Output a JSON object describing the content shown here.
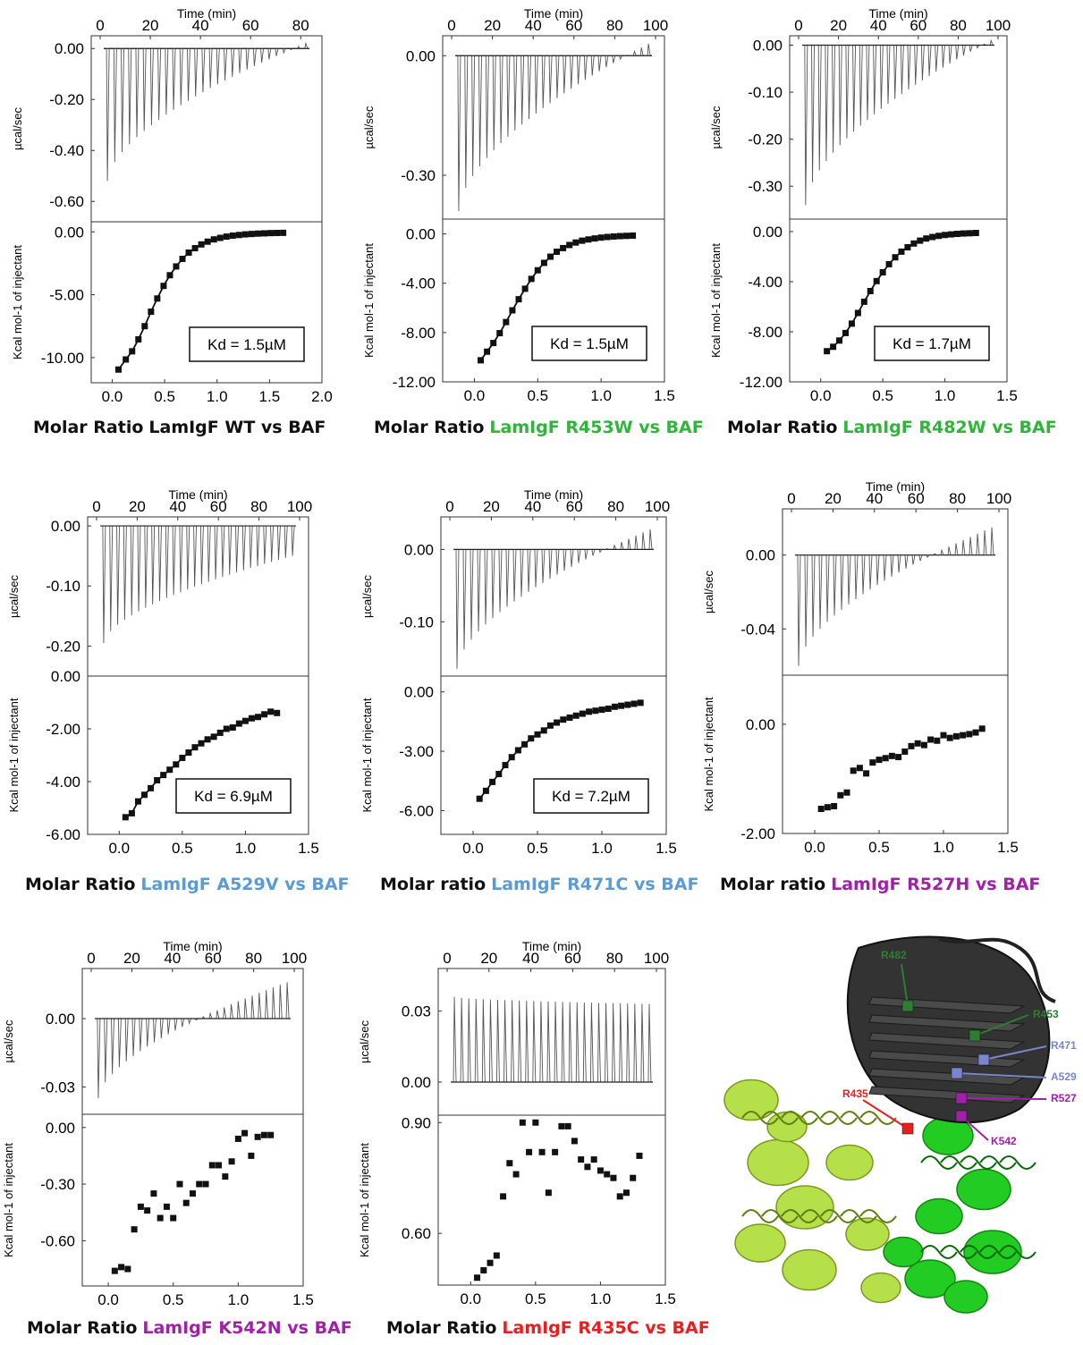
{
  "panels": [
    {
      "id": "wt",
      "time_label": "Time (min)",
      "time_ticks": [
        "0",
        "20",
        "40",
        "60",
        "80"
      ],
      "time_max": 90,
      "thermo_ylabel": "µcal/sec",
      "thermo_ticks": [
        "0.00",
        "-0.20",
        "-0.40",
        "-0.60"
      ],
      "thermo_ylim": [
        -0.68,
        0.05
      ],
      "binding_ylabel": "Kcal mol-1 of injectant",
      "binding_ticks": [
        "0.00",
        "-5.00",
        "-10.00"
      ],
      "binding_ylim": [
        -12.0,
        0.8
      ],
      "xticks": [
        "0.0",
        "0.5",
        "1.0",
        "1.5",
        "2.0"
      ],
      "xlim": [
        -0.2,
        2.0
      ],
      "caption_prefix": "Molar Ratio",
      "caption_mutant": "LamIgF WT vs BAF",
      "mutant_color": "#111111",
      "kd": "Kd = 1.5µM",
      "chart_data": {
        "type": "scatter",
        "thermogram": {
          "n_injections": 28,
          "first_peak": -0.52,
          "final_peak": 0.02,
          "baseline": 0.0,
          "duration_min": 88
        },
        "binding_isotherm": {
          "x": [
            0.06,
            0.13,
            0.19,
            0.25,
            0.31,
            0.37,
            0.43,
            0.49,
            0.55,
            0.61,
            0.67,
            0.73,
            0.79,
            0.85,
            0.91,
            0.97,
            1.03,
            1.09,
            1.15,
            1.21,
            1.27,
            1.33,
            1.39,
            1.45,
            1.51,
            1.57,
            1.63
          ],
          "y": [
            -10.95,
            -10.15,
            -9.5,
            -8.55,
            -7.5,
            -6.35,
            -5.3,
            -4.3,
            -3.45,
            -2.75,
            -2.15,
            -1.65,
            -1.3,
            -1.0,
            -0.78,
            -0.6,
            -0.48,
            -0.38,
            -0.3,
            -0.25,
            -0.2,
            -0.17,
            -0.14,
            -0.12,
            -0.1,
            -0.09,
            -0.08
          ],
          "fit": true
        }
      }
    },
    {
      "id": "r453w",
      "time_label": "Time (min)",
      "time_ticks": [
        "0",
        "20",
        "40",
        "60",
        "80",
        "100"
      ],
      "time_max": 100,
      "thermo_ylabel": "µcal/sec",
      "thermo_ticks": [
        "0.00",
        "-0.30"
      ],
      "thermo_ylim": [
        -0.41,
        0.05
      ],
      "binding_ylabel": "Kcal mol-1 of injectant",
      "binding_ticks": [
        "0.00",
        "-4.00",
        "-8.00",
        "-12.00"
      ],
      "binding_ylim": [
        -12.0,
        1.2
      ],
      "xticks": [
        "0.0",
        "0.5",
        "1.0",
        "1.5"
      ],
      "xlim": [
        -0.25,
        1.5
      ],
      "caption_prefix": "Molar Ratio",
      "caption_mutant": "LamIgF R453W vs BAF",
      "mutant_color": "#2fb53a",
      "kd": "Kd = 1.5µM",
      "chart_data": {
        "type": "scatter",
        "thermogram": {
          "n_injections": 28,
          "first_peak": -0.39,
          "final_peak": 0.03,
          "baseline": 0.0,
          "duration_min": 96
        },
        "binding_isotherm": {
          "x": [
            0.05,
            0.1,
            0.15,
            0.2,
            0.25,
            0.3,
            0.35,
            0.4,
            0.45,
            0.5,
            0.55,
            0.6,
            0.65,
            0.7,
            0.75,
            0.8,
            0.85,
            0.9,
            0.95,
            1.0,
            1.05,
            1.1,
            1.15,
            1.2,
            1.25
          ],
          "y": [
            -10.25,
            -9.55,
            -8.85,
            -8.05,
            -7.15,
            -6.2,
            -5.3,
            -4.45,
            -3.65,
            -2.95,
            -2.35,
            -1.85,
            -1.45,
            -1.15,
            -0.9,
            -0.7,
            -0.55,
            -0.45,
            -0.37,
            -0.3,
            -0.25,
            -0.21,
            -0.18,
            -0.16,
            -0.14
          ],
          "fit": true
        }
      }
    },
    {
      "id": "r482w",
      "time_label": "Time (min)",
      "time_ticks": [
        "0",
        "20",
        "40",
        "60",
        "80",
        "100"
      ],
      "time_max": 100,
      "thermo_ylabel": "µcal/sec",
      "thermo_ticks": [
        "0.00",
        "-0.10",
        "-0.20",
        "-0.30"
      ],
      "thermo_ylim": [
        -0.37,
        0.02
      ],
      "binding_ylabel": "Kcal mol-1 of injectant",
      "binding_ticks": [
        "0.00",
        "-4.00",
        "-8.00",
        "-12.00"
      ],
      "binding_ylim": [
        -12.0,
        1.0
      ],
      "xticks": [
        "0.0",
        "0.5",
        "1.0",
        "1.5"
      ],
      "xlim": [
        -0.25,
        1.5
      ],
      "caption_prefix": "Molar Ratio",
      "caption_mutant": "LamIgF R482W vs BAF",
      "mutant_color": "#2fb53a",
      "kd": "Kd = 1.7µM",
      "chart_data": {
        "type": "scatter",
        "thermogram": {
          "n_injections": 28,
          "first_peak": -0.34,
          "final_peak": 0.01,
          "baseline": 0.0,
          "duration_min": 96
        },
        "binding_isotherm": {
          "x": [
            0.05,
            0.1,
            0.15,
            0.2,
            0.25,
            0.3,
            0.35,
            0.4,
            0.45,
            0.5,
            0.55,
            0.6,
            0.65,
            0.7,
            0.75,
            0.8,
            0.85,
            0.9,
            0.95,
            1.0,
            1.05,
            1.1,
            1.15,
            1.2,
            1.25
          ],
          "y": [
            -9.55,
            -9.2,
            -8.7,
            -8.1,
            -7.35,
            -6.5,
            -5.6,
            -4.75,
            -3.95,
            -3.25,
            -2.6,
            -2.05,
            -1.6,
            -1.25,
            -0.95,
            -0.72,
            -0.55,
            -0.43,
            -0.34,
            -0.27,
            -0.22,
            -0.18,
            -0.15,
            -0.13,
            -0.11
          ],
          "fit": true
        }
      }
    },
    {
      "id": "a529v",
      "time_label": "Time (min)",
      "time_ticks": [
        "0",
        "20",
        "40",
        "60",
        "80",
        "100"
      ],
      "time_max": 100,
      "thermo_ylabel": "µcal/sec",
      "thermo_ticks": [
        "0.00",
        "-0.10",
        "-0.20"
      ],
      "thermo_ylim": [
        -0.25,
        0.015
      ],
      "binding_ylabel": "Kcal mol-1 of injectant",
      "binding_ticks": [
        "0.00",
        "-2.00",
        "-4.00",
        "-6.00"
      ],
      "binding_ylim": [
        -6.0,
        0.0
      ],
      "xticks": [
        "0.0",
        "0.5",
        "1.0",
        "1.5"
      ],
      "xlim": [
        -0.25,
        1.5
      ],
      "caption_prefix": "Molar Ratio",
      "caption_mutant": "LamIgF A529V vs BAF",
      "mutant_color": "#5b9bd5",
      "kd": "Kd = 6.9µM",
      "chart_data": {
        "type": "scatter",
        "thermogram": {
          "n_injections": 28,
          "first_peak": -0.195,
          "final_peak": -0.05,
          "baseline": 0.0,
          "duration_min": 96
        },
        "binding_isotherm": {
          "x": [
            0.05,
            0.1,
            0.15,
            0.2,
            0.25,
            0.3,
            0.35,
            0.4,
            0.45,
            0.5,
            0.55,
            0.6,
            0.65,
            0.7,
            0.75,
            0.8,
            0.85,
            0.9,
            0.95,
            1.0,
            1.05,
            1.1,
            1.15,
            1.2,
            1.25
          ],
          "y": [
            -5.35,
            -5.2,
            -4.75,
            -4.5,
            -4.25,
            -3.95,
            -3.75,
            -3.55,
            -3.35,
            -3.1,
            -2.9,
            -2.7,
            -2.55,
            -2.4,
            -2.3,
            -2.15,
            -2.0,
            -1.95,
            -1.8,
            -1.7,
            -1.6,
            -1.55,
            -1.45,
            -1.35,
            -1.4
          ],
          "fit": true
        }
      }
    },
    {
      "id": "r471c",
      "time_label": "Time (min)",
      "time_ticks": [
        "0",
        "20",
        "40",
        "60",
        "80",
        "100"
      ],
      "time_max": 100,
      "thermo_ylabel": "µcal/sec",
      "thermo_ticks": [
        "0.00",
        "-0.10"
      ],
      "thermo_ylim": [
        -0.175,
        0.045
      ],
      "binding_ylabel": "Kcal mol-1 of injectant",
      "binding_ticks": [
        "0.00",
        "-3.00",
        "-6.00"
      ],
      "binding_ylim": [
        -7.2,
        0.8
      ],
      "xticks": [
        "0.0",
        "0.5",
        "1.0",
        "1.5"
      ],
      "xlim": [
        -0.25,
        1.5
      ],
      "caption_prefix": "Molar ratio",
      "caption_mutant": "LamIgF R471C vs BAF",
      "mutant_color": "#5b9bd5",
      "kd": "Kd = 7.2µM",
      "chart_data": {
        "type": "scatter",
        "thermogram": {
          "n_injections": 28,
          "first_peak": -0.165,
          "final_peak": 0.028,
          "baseline": 0.0,
          "duration_min": 96
        },
        "binding_isotherm": {
          "x": [
            0.05,
            0.1,
            0.15,
            0.2,
            0.25,
            0.3,
            0.35,
            0.4,
            0.45,
            0.5,
            0.55,
            0.6,
            0.65,
            0.7,
            0.75,
            0.8,
            0.85,
            0.9,
            0.95,
            1.0,
            1.05,
            1.1,
            1.15,
            1.2,
            1.25,
            1.3
          ],
          "y": [
            -5.4,
            -5.0,
            -4.55,
            -4.15,
            -3.7,
            -3.3,
            -2.95,
            -2.65,
            -2.35,
            -2.15,
            -1.95,
            -1.7,
            -1.55,
            -1.4,
            -1.3,
            -1.2,
            -1.1,
            -1.0,
            -0.95,
            -0.9,
            -0.85,
            -0.75,
            -0.7,
            -0.65,
            -0.6,
            -0.55
          ],
          "fit": true
        }
      }
    },
    {
      "id": "r527h",
      "time_label": "Time (min)",
      "time_ticks": [
        "0",
        "20",
        "40",
        "60",
        "80",
        "100"
      ],
      "time_max": 100,
      "thermo_ylabel": "µcal/sec",
      "thermo_ticks": [
        "0.00",
        "-0.04"
      ],
      "thermo_ylim": [
        -0.065,
        0.025
      ],
      "binding_ylabel": "Kcal mol-1 of injectant",
      "binding_ticks": [
        "0.00",
        "-2.00"
      ],
      "binding_ylim": [
        -2.0,
        0.9
      ],
      "xticks": [
        "0.0",
        "0.5",
        "1.0",
        "1.5"
      ],
      "xlim": [
        -0.25,
        1.5
      ],
      "caption_prefix": "Molar ratio",
      "caption_mutant": "LamIgF R527H vs BAF",
      "mutant_color": "#a020a8",
      "kd": "",
      "chart_data": {
        "type": "scatter",
        "thermogram": {
          "n_injections": 28,
          "first_peak": -0.06,
          "final_peak": 0.015,
          "baseline": 0.0,
          "duration_min": 96
        },
        "binding_isotherm": {
          "x": [
            0.05,
            0.1,
            0.15,
            0.2,
            0.25,
            0.3,
            0.35,
            0.4,
            0.45,
            0.5,
            0.55,
            0.6,
            0.65,
            0.7,
            0.75,
            0.8,
            0.85,
            0.9,
            0.95,
            1.0,
            1.05,
            1.1,
            1.15,
            1.2,
            1.25,
            1.3
          ],
          "y": [
            -1.55,
            -1.52,
            -1.5,
            -1.3,
            -1.25,
            -0.85,
            -0.8,
            -0.9,
            -0.7,
            -0.65,
            -0.62,
            -0.58,
            -0.6,
            -0.5,
            -0.4,
            -0.35,
            -0.38,
            -0.28,
            -0.3,
            -0.2,
            -0.25,
            -0.22,
            -0.2,
            -0.18,
            -0.15,
            -0.08
          ],
          "fit": false
        }
      }
    },
    {
      "id": "k542n",
      "time_label": "Time (min)",
      "time_ticks": [
        "0",
        "20",
        "40",
        "60",
        "80",
        "100"
      ],
      "time_max": 100,
      "thermo_ylabel": "µcal/sec",
      "thermo_ticks": [
        "0.00",
        "-0.03"
      ],
      "thermo_ylim": [
        -0.042,
        0.022
      ],
      "binding_ylabel": "Kcal mol-1 of injectant",
      "binding_ticks": [
        "0.00",
        "-0.30",
        "-0.60"
      ],
      "binding_ylim": [
        -0.84,
        0.07
      ],
      "xticks": [
        "0.0",
        "0.5",
        "1.0",
        "1.5"
      ],
      "xlim": [
        -0.2,
        1.5
      ],
      "caption_prefix": "Molar Ratio",
      "caption_mutant": "LamIgF K542N vs BAF",
      "mutant_color": "#a020a8",
      "kd": "",
      "chart_data": {
        "type": "scatter",
        "thermogram": {
          "n_injections": 28,
          "first_peak": -0.035,
          "final_peak": 0.016,
          "baseline": 0.0,
          "duration_min": 96
        },
        "binding_isotherm": {
          "x": [
            0.05,
            0.1,
            0.15,
            0.2,
            0.25,
            0.3,
            0.35,
            0.4,
            0.45,
            0.5,
            0.55,
            0.6,
            0.65,
            0.7,
            0.75,
            0.8,
            0.85,
            0.9,
            0.95,
            1.0,
            1.05,
            1.1,
            1.15,
            1.2,
            1.25
          ],
          "y": [
            -0.76,
            -0.74,
            -0.75,
            -0.54,
            -0.42,
            -0.44,
            -0.35,
            -0.48,
            -0.42,
            -0.48,
            -0.3,
            -0.4,
            -0.35,
            -0.3,
            -0.3,
            -0.2,
            -0.2,
            -0.26,
            -0.18,
            -0.06,
            -0.03,
            -0.15,
            -0.05,
            -0.04,
            -0.04
          ],
          "fit": false
        }
      }
    },
    {
      "id": "r435c",
      "time_label": "Time (min)",
      "time_ticks": [
        "0",
        "20",
        "40",
        "60",
        "80",
        "100"
      ],
      "time_max": 100,
      "thermo_ylabel": "µcal/sec",
      "thermo_ticks": [
        "0.03",
        "0.00"
      ],
      "thermo_ylim": [
        -0.014,
        0.048
      ],
      "binding_ylabel": "Kcal mol-1 of injectant",
      "binding_ticks": [
        "0.90",
        "0.60"
      ],
      "binding_ylim": [
        0.46,
        0.92
      ],
      "xticks": [
        "0.0",
        "0.5",
        "1.0",
        "1.5"
      ],
      "xlim": [
        -0.25,
        1.5
      ],
      "caption_prefix": "Molar Ratio",
      "caption_mutant": "LamIgF R435C vs BAF",
      "mutant_color": "#e81f1f",
      "kd": "",
      "chart_data": {
        "type": "scatter",
        "thermogram": {
          "n_injections": 28,
          "first_peak": 0.036,
          "final_peak": 0.033,
          "baseline": 0.0,
          "duration_min": 96
        },
        "binding_isotherm": {
          "x": [
            0.05,
            0.1,
            0.15,
            0.2,
            0.25,
            0.3,
            0.35,
            0.4,
            0.45,
            0.5,
            0.55,
            0.6,
            0.65,
            0.7,
            0.75,
            0.8,
            0.85,
            0.9,
            0.95,
            1.0,
            1.05,
            1.1,
            1.15,
            1.2,
            1.25,
            1.3
          ],
          "y": [
            0.48,
            0.5,
            0.52,
            0.54,
            0.7,
            0.79,
            0.76,
            0.9,
            0.82,
            0.9,
            0.82,
            0.71,
            0.82,
            0.89,
            0.89,
            0.85,
            0.8,
            0.78,
            0.8,
            0.77,
            0.76,
            0.75,
            0.7,
            0.71,
            0.75,
            0.81
          ],
          "fit": false
        }
      }
    }
  ],
  "structure": {
    "colors": {
      "domain": "#333333",
      "baf_a": "#b5e04a",
      "baf_b": "#22cc22"
    },
    "labels": [
      {
        "text": "R482",
        "color": "#2e7d32"
      },
      {
        "text": "R453",
        "color": "#2e7d32"
      },
      {
        "text": "R471",
        "color": "#7986cb"
      },
      {
        "text": "A529",
        "color": "#7986cb"
      },
      {
        "text": "R435",
        "color": "#e81f1f"
      },
      {
        "text": "R527",
        "color": "#a020a8"
      },
      {
        "text": "K542",
        "color": "#a020a8"
      }
    ]
  }
}
